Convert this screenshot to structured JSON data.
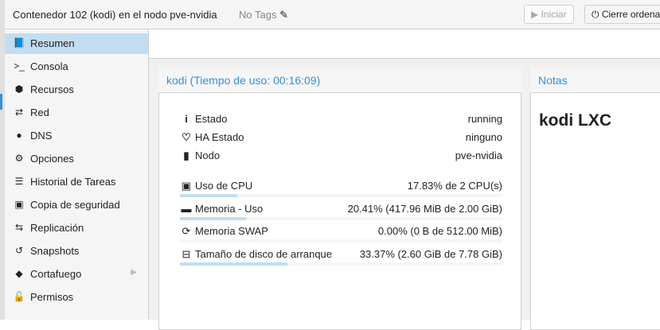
{
  "header": {
    "title": "Contenedor 102 (kodi) en el nodo pve-nvidia",
    "tags": "No Tags",
    "start_label": "Iniciar",
    "shutdown_label": "Cierre ordena"
  },
  "sidebar": {
    "items": [
      {
        "label": "Resumen",
        "icon": "book-icon",
        "glyph": "📘"
      },
      {
        "label": "Consola",
        "icon": "terminal-icon",
        "glyph": ">_"
      },
      {
        "label": "Recursos",
        "icon": "cube-icon",
        "glyph": "⬢"
      },
      {
        "label": "Red",
        "icon": "exchange-icon",
        "glyph": "⇄"
      },
      {
        "label": "DNS",
        "icon": "globe-icon",
        "glyph": "●"
      },
      {
        "label": "Opciones",
        "icon": "gear-icon",
        "glyph": "⚙"
      },
      {
        "label": "Historial de Tareas",
        "icon": "list-icon",
        "glyph": "☰"
      },
      {
        "label": "Copia de seguridad",
        "icon": "floppy-icon",
        "glyph": "▣"
      },
      {
        "label": "Replicación",
        "icon": "retweet-icon",
        "glyph": "⇆"
      },
      {
        "label": "Snapshots",
        "icon": "history-icon",
        "glyph": "↺"
      },
      {
        "label": "Cortafuego",
        "icon": "shield-icon",
        "glyph": "◆"
      },
      {
        "label": "Permisos",
        "icon": "unlock-icon",
        "glyph": "🔓"
      }
    ],
    "selected": "Resumen"
  },
  "status": {
    "title": "kodi (Tiempo de uso: 00:16:09)",
    "info": [
      {
        "label": "Estado",
        "value": "running",
        "icon": "info-icon",
        "glyph": "i"
      },
      {
        "label": "HA Estado",
        "value": "ninguno",
        "icon": "heartbeat-icon",
        "glyph": "♡"
      },
      {
        "label": "Nodo",
        "value": "pve-nvidia",
        "icon": "building-icon",
        "glyph": "▮"
      }
    ],
    "metrics": [
      {
        "label": "Uso de CPU",
        "value": "17.83% de 2 CPU(s)",
        "percent": 17.83,
        "icon": "cpu-icon",
        "glyph": "▣"
      },
      {
        "label": "Memoria - Uso",
        "value": "20.41% (417.96 MiB de 2.00 GiB)",
        "percent": 20.41,
        "icon": "memory-icon",
        "glyph": "▬"
      },
      {
        "label": "Memoria SWAP",
        "value": "0.00% (0 B de 512.00 MiB)",
        "percent": 0,
        "icon": "refresh-icon",
        "glyph": "⟳"
      },
      {
        "label": "Tamaño de disco de arranque",
        "value": "33.37% (2.60 GiB de 7.78 GiB)",
        "percent": 33.37,
        "icon": "hdd-icon",
        "glyph": "⊟"
      }
    ]
  },
  "notes": {
    "title": "Notas",
    "content": "kodi LXC"
  }
}
